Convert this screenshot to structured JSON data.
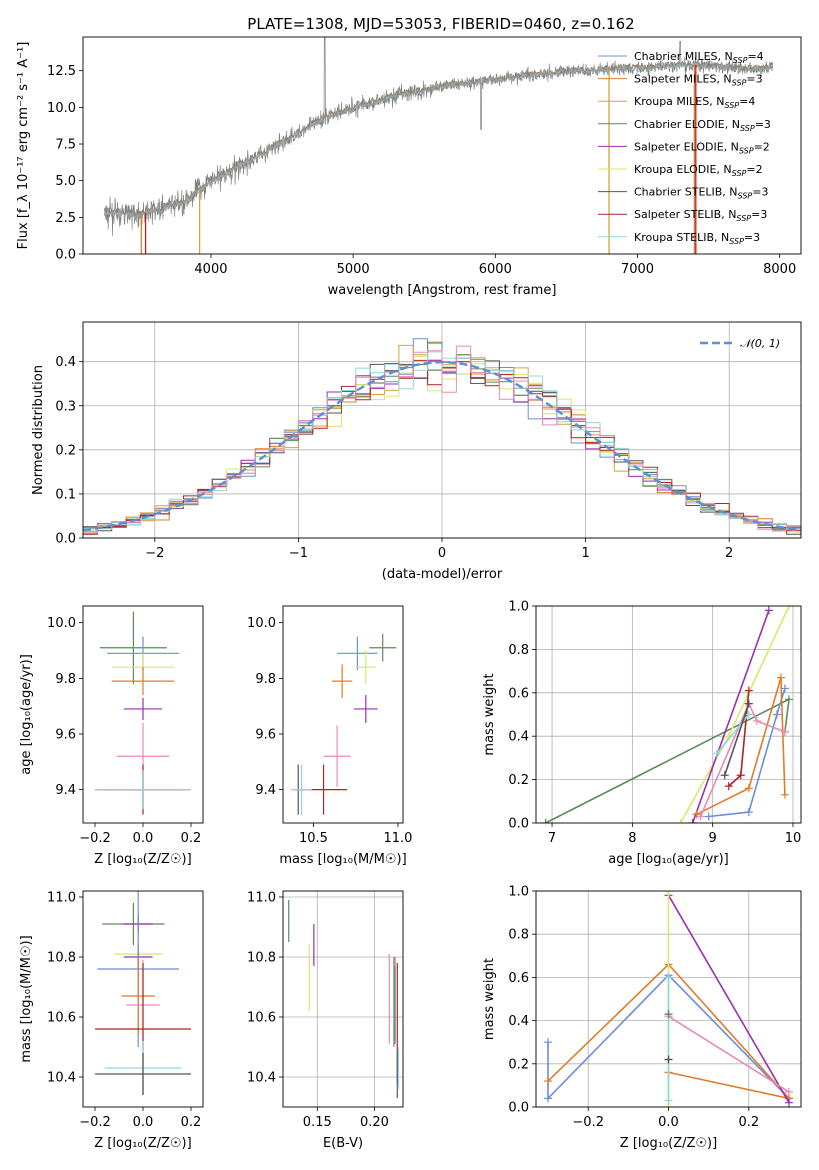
{
  "title": "PLATE=1308, MJD=53053, FIBERID=0460, z=0.162",
  "colors": {
    "spectrum": "#808080",
    "chabrier_miles": "#6a8fd8",
    "salpeter_miles": "#e07b2b",
    "kroupa_miles": "#d4a23a",
    "chabrier_elodie": "#5e8a5e",
    "salpeter_elodie": "#9a2fb0",
    "kroupa_elodie": "#d8e86a",
    "chabrier_stelib": "#555555",
    "salpeter_stelib": "#b22222",
    "kroupa_stelib": "#8fd8d8",
    "pink": "#e88ab8",
    "gauss": "#5b8fd6"
  },
  "chart_data": [
    {
      "id": "spectrum",
      "type": "line",
      "title": "PLATE=1308, MJD=53053, FIBERID=0460, z=0.162",
      "xlabel": "wavelength [Angstrom, rest frame]",
      "ylabel": "Flux [f_λ 10⁻¹⁷ erg cm⁻² s⁻¹ A⁻¹]",
      "xlim": [
        3100,
        8150
      ],
      "ylim": [
        0,
        14.8
      ],
      "xticks": [
        4000,
        5000,
        6000,
        7000,
        8000
      ],
      "yticks": [
        0.0,
        2.5,
        5.0,
        7.5,
        10.0,
        12.5
      ],
      "ytick_labels": [
        "0.0",
        "2.5",
        "5.0",
        "7.5",
        "10.0",
        "12.5"
      ],
      "grid": false,
      "legend_position": "top-right",
      "continuum": {
        "x": [
          3250,
          3500,
          3800,
          4000,
          4200,
          4500,
          4800,
          5000,
          5300,
          5600,
          6000,
          6300,
          6600,
          7000,
          7400,
          7800,
          7950
        ],
        "y": [
          2.8,
          2.7,
          3.5,
          5.0,
          6.0,
          7.6,
          9.3,
          10.0,
          10.8,
          11.4,
          11.9,
          12.3,
          12.5,
          12.7,
          12.9,
          12.6,
          12.8
        ]
      },
      "series": [
        {
          "name": "Chabrier MILES, N_SSP=4",
          "label_main": "Chabrier MILES, N",
          "label_sub": "SSP",
          "label_end": "=4",
          "color": "#6a8fd8"
        },
        {
          "name": "Salpeter MILES, N_SSP=3",
          "label_main": "Salpeter MILES, N",
          "label_sub": "SSP",
          "label_end": "=3",
          "color": "#e07b2b"
        },
        {
          "name": "Kroupa MILES, N_SSP=4",
          "label_main": "Kroupa MILES, N",
          "label_sub": "SSP",
          "label_end": "=4",
          "color": "#d4a23a"
        },
        {
          "name": "Chabrier ELODIE, N_SSP=3",
          "label_main": "Chabrier ELODIE, N",
          "label_sub": "SSP",
          "label_end": "=3",
          "color": "#5e8a5e"
        },
        {
          "name": "Salpeter ELODIE, N_SSP=2",
          "label_main": "Salpeter ELODIE, N",
          "label_sub": "SSP",
          "label_end": "=2",
          "color": "#9a2fb0"
        },
        {
          "name": "Kroupa ELODIE, N_SSP=2",
          "label_main": "Kroupa ELODIE, N",
          "label_sub": "SSP",
          "label_end": "=2",
          "color": "#d8e86a"
        },
        {
          "name": "Chabrier STELIB, N_SSP=3",
          "label_main": "Chabrier STELIB, N",
          "label_sub": "SSP",
          "label_end": "=3",
          "color": "#555555"
        },
        {
          "name": "Salpeter STELIB, N_SSP=3",
          "label_main": "Salpeter STELIB, N",
          "label_sub": "SSP",
          "label_end": "=3",
          "color": "#b22222"
        },
        {
          "name": "Kroupa STELIB, N_SSP=3",
          "label_main": "Kroupa STELIB, N",
          "label_sub": "SSP",
          "label_end": "=3",
          "color": "#8fd8d8"
        }
      ],
      "model_drops": [
        {
          "x": 3510,
          "color": "#e07b2b"
        },
        {
          "x": 3540,
          "color": "#b22222"
        },
        {
          "x": 3920,
          "color": "#d4a23a"
        },
        {
          "x": 6800,
          "color": "#d4a23a"
        },
        {
          "x": 7400,
          "color": "#e07b2b"
        },
        {
          "x": 7410,
          "color": "#b22222"
        }
      ]
    },
    {
      "id": "residuals",
      "type": "histogram",
      "xlabel": "(data-model)/error",
      "ylabel": "Normed distribution",
      "xlim": [
        -2.5,
        2.5
      ],
      "ylim": [
        0,
        0.49
      ],
      "xticks": [
        -2,
        -1,
        0,
        1,
        2
      ],
      "xtick_labels": [
        "−2",
        "−1",
        "0",
        "1",
        "2"
      ],
      "yticks": [
        0.0,
        0.1,
        0.2,
        0.3,
        0.4
      ],
      "ytick_labels": [
        "0.0",
        "0.1",
        "0.2",
        "0.3",
        "0.4"
      ],
      "grid": true,
      "legend_position": "top-right",
      "legend_label": "𝒩(0, 1)",
      "bin_width": 0.1
    },
    {
      "id": "age_vs_Z",
      "type": "errorbar",
      "xlabel": "Z [log₁₀(Z/Z☉)]",
      "ylabel": "age  [log₁₀(age/yr)]",
      "xlim": [
        -0.25,
        0.25
      ],
      "ylim": [
        9.28,
        10.06
      ],
      "xticks": [
        -0.2,
        0.0,
        0.2
      ],
      "xtick_labels": [
        "−0.2",
        "0.0",
        "0.2"
      ],
      "yticks": [
        9.4,
        9.6,
        9.8,
        10.0
      ],
      "ytick_labels": [
        "9.4",
        "9.6",
        "9.8",
        "10.0"
      ],
      "grid": false,
      "points": [
        {
          "x": -0.04,
          "xerr": 0.14,
          "y": 9.91,
          "yerr": 0.13,
          "color": "#5e8a5e"
        },
        {
          "x": 0.0,
          "xerr": 0.15,
          "y": 9.89,
          "yerr": 0.06,
          "color": "#6a8fd8"
        },
        {
          "x": 0.0,
          "xerr": 0.13,
          "y": 9.84,
          "yerr": 0.05,
          "color": "#d8e86a"
        },
        {
          "x": 0.0,
          "xerr": 0.13,
          "y": 9.79,
          "yerr": 0.05,
          "color": "#e07b2b"
        },
        {
          "x": 0.0,
          "xerr": 0.08,
          "y": 9.69,
          "yerr": 0.04,
          "color": "#9a2fb0"
        },
        {
          "x": 0.0,
          "xerr": 0.11,
          "y": 9.52,
          "yerr": 0.12,
          "color": "#e88ab8"
        },
        {
          "x": 0.0,
          "xerr": 0.16,
          "y": 9.4,
          "yerr": 0.09,
          "color": "#b22222"
        },
        {
          "x": 0.0,
          "xerr": 0.2,
          "y": 9.4,
          "yerr": 0.07,
          "color": "#555555"
        },
        {
          "x": 0.0,
          "xerr": 0.2,
          "y": 9.4,
          "yerr": 0.07,
          "color": "#8fd8d8"
        }
      ]
    },
    {
      "id": "age_vs_mass",
      "type": "errorbar",
      "xlabel": "mass [log₁₀(M/M☉)]",
      "ylabel": "",
      "xlim": [
        10.32,
        11.03
      ],
      "ylim": [
        9.28,
        10.06
      ],
      "xticks": [
        10.5,
        11.0
      ],
      "xtick_labels": [
        "10.5",
        "11.0"
      ],
      "yticks": [
        9.4,
        9.6,
        9.8,
        10.0
      ],
      "ytick_labels": [
        "9.4",
        "9.6",
        "9.8",
        "10.0"
      ],
      "grid": false,
      "points": [
        {
          "x": 10.91,
          "xerr": 0.08,
          "y": 9.91,
          "yerr": 0.05,
          "color": "#5e8a5e"
        },
        {
          "x": 10.76,
          "xerr": 0.12,
          "y": 9.89,
          "yerr": 0.06,
          "color": "#6a8fd8"
        },
        {
          "x": 10.81,
          "xerr": 0.06,
          "y": 9.84,
          "yerr": 0.06,
          "color": "#d8e86a"
        },
        {
          "x": 10.67,
          "xerr": 0.06,
          "y": 9.79,
          "yerr": 0.06,
          "color": "#e07b2b"
        },
        {
          "x": 10.81,
          "xerr": 0.07,
          "y": 9.69,
          "yerr": 0.05,
          "color": "#9a2fb0"
        },
        {
          "x": 10.64,
          "xerr": 0.08,
          "y": 9.52,
          "yerr": 0.11,
          "color": "#e88ab8"
        },
        {
          "x": 10.56,
          "xerr": 0.14,
          "y": 9.4,
          "yerr": 0.09,
          "color": "#b22222"
        },
        {
          "x": 10.41,
          "xerr": 0.04,
          "y": 9.4,
          "yerr": 0.09,
          "color": "#555555"
        },
        {
          "x": 10.43,
          "xerr": 0.06,
          "y": 9.4,
          "yerr": 0.09,
          "color": "#8fd8d8"
        }
      ]
    },
    {
      "id": "weight_vs_age",
      "type": "line",
      "xlabel": "age  [log₁₀(age/yr)]",
      "ylabel": "mass weight",
      "xlim": [
        6.8,
        10.1
      ],
      "ylim": [
        0.0,
        1.0
      ],
      "xticks": [
        7,
        8,
        9,
        10
      ],
      "xtick_labels": [
        "7",
        "8",
        "9",
        "10"
      ],
      "yticks": [
        0.0,
        0.2,
        0.4,
        0.6,
        0.8,
        1.0
      ],
      "ytick_labels": [
        "0.0",
        "0.2",
        "0.4",
        "0.6",
        "0.8",
        "1.0"
      ],
      "grid": true,
      "series": [
        {
          "color": "#5e8a5e",
          "x": [
            6.92,
            9.95,
            9.9
          ],
          "y": [
            0.0,
            0.57,
            0.42
          ]
        },
        {
          "color": "#d8e86a",
          "x": [
            8.6,
            9.2,
            9.95
          ],
          "y": [
            0.0,
            0.4,
            1.0
          ]
        },
        {
          "color": "#9a2fb0",
          "x": [
            8.75,
            9.7
          ],
          "y": [
            0.0,
            0.98
          ]
        },
        {
          "color": "#6a8fd8",
          "x": [
            8.95,
            9.45,
            9.8,
            9.9
          ],
          "y": [
            0.03,
            0.05,
            0.5,
            0.62
          ]
        },
        {
          "color": "#e07b2b",
          "x": [
            8.8,
            9.45,
            9.85,
            9.9
          ],
          "y": [
            0.04,
            0.16,
            0.67,
            0.13
          ]
        },
        {
          "color": "#b22222",
          "x": [
            9.2,
            9.35,
            9.45
          ],
          "y": [
            0.17,
            0.22,
            0.61
          ]
        },
        {
          "color": "#e88ab8",
          "x": [
            8.85,
            9.45,
            9.55,
            9.9
          ],
          "y": [
            0.03,
            0.55,
            0.47,
            0.42
          ]
        },
        {
          "color": "#8fd8d8",
          "x": [
            9.05,
            9.45
          ],
          "y": [
            0.32,
            0.5
          ]
        },
        {
          "color": "#555555",
          "x": [
            9.15,
            9.45
          ],
          "y": [
            0.22,
            0.55
          ]
        }
      ]
    },
    {
      "id": "mass_vs_Z",
      "type": "errorbar",
      "xlabel": "Z [log₁₀(Z/Z☉)]",
      "ylabel": "mass [log₁₀(M/M☉)]",
      "xlim": [
        -0.25,
        0.25
      ],
      "ylim": [
        10.3,
        11.02
      ],
      "xticks": [
        -0.2,
        0.0,
        0.2
      ],
      "xtick_labels": [
        "−0.2",
        "0.0",
        "0.2"
      ],
      "yticks": [
        10.4,
        10.6,
        10.8,
        11.0
      ],
      "ytick_labels": [
        "10.4",
        "10.6",
        "10.8",
        "11.0"
      ],
      "grid": false,
      "points": [
        {
          "x": -0.04,
          "xerr": 0.13,
          "y": 10.91,
          "yerr": 0.07,
          "color": "#5e8a5e"
        },
        {
          "x": -0.02,
          "xerr": 0.06,
          "y": 10.91,
          "yerr": 0.03,
          "color": "#9a2fb0"
        },
        {
          "x": -0.02,
          "xerr": 0.1,
          "y": 10.81,
          "yerr": 0.04,
          "color": "#d8e86a"
        },
        {
          "x": -0.02,
          "xerr": 0.06,
          "y": 10.8,
          "yerr": 0.04,
          "color": "#9a2fb0"
        },
        {
          "x": -0.02,
          "xerr": 0.17,
          "y": 10.76,
          "yerr": 0.26,
          "color": "#6a8fd8"
        },
        {
          "x": -0.02,
          "xerr": 0.07,
          "y": 10.67,
          "yerr": 0.13,
          "color": "#e07b2b"
        },
        {
          "x": 0.0,
          "xerr": 0.07,
          "y": 10.64,
          "yerr": 0.15,
          "color": "#e88ab8"
        },
        {
          "x": 0.0,
          "xerr": 0.2,
          "y": 10.56,
          "yerr": 0.22,
          "color": "#b22222"
        },
        {
          "x": 0.0,
          "xerr": 0.16,
          "y": 10.43,
          "yerr": 0.09,
          "color": "#8fd8d8"
        },
        {
          "x": 0.0,
          "xerr": 0.2,
          "y": 10.41,
          "yerr": 0.07,
          "color": "#555555"
        }
      ]
    },
    {
      "id": "mass_vs_ebv",
      "type": "errorbar",
      "xlabel": "E(B-V)",
      "ylabel": "",
      "xlim": [
        0.12,
        0.225
      ],
      "ylim": [
        10.3,
        11.02
      ],
      "xticks": [
        0.15,
        0.2
      ],
      "xtick_labels": [
        "0.15",
        "0.20"
      ],
      "yticks": [
        10.4,
        10.6,
        10.8,
        11.0
      ],
      "ytick_labels": [
        "10.4",
        "10.6",
        "10.8",
        "11.0"
      ],
      "grid": true,
      "points": [
        {
          "x": 0.125,
          "y": 10.92,
          "yerr": 0.07,
          "color": "#5e8a5e"
        },
        {
          "x": 0.147,
          "y": 10.84,
          "yerr": 0.07,
          "color": "#9a2fb0"
        },
        {
          "x": 0.143,
          "y": 10.73,
          "yerr": 0.11,
          "color": "#d8e86a"
        },
        {
          "x": 0.213,
          "y": 10.66,
          "yerr": 0.15,
          "color": "#e88ab8"
        },
        {
          "x": 0.217,
          "y": 10.65,
          "yerr": 0.15,
          "color": "#6a8fd8"
        },
        {
          "x": 0.218,
          "y": 10.66,
          "yerr": 0.14,
          "color": "#e07b2b"
        },
        {
          "x": 0.218,
          "y": 10.64,
          "yerr": 0.13,
          "color": "#5e8a5e"
        },
        {
          "x": 0.22,
          "y": 10.58,
          "yerr": 0.2,
          "color": "#b22222"
        },
        {
          "x": 0.22,
          "y": 10.41,
          "yerr": 0.08,
          "color": "#555555"
        },
        {
          "x": 0.221,
          "y": 10.43,
          "yerr": 0.07,
          "color": "#8fd8d8"
        }
      ]
    },
    {
      "id": "weight_vs_Z",
      "type": "line",
      "xlabel": "Z [log₁₀(Z/Z☉)]",
      "ylabel": "mass weight",
      "xlim": [
        -0.33,
        0.33
      ],
      "ylim": [
        0.0,
        1.0
      ],
      "xticks": [
        -0.2,
        0.0,
        0.2
      ],
      "xtick_labels": [
        "−0.2",
        "0.0",
        "0.2"
      ],
      "yticks": [
        0.0,
        0.2,
        0.4,
        0.6,
        0.8,
        1.0
      ],
      "ytick_labels": [
        "0.0",
        "0.2",
        "0.4",
        "0.6",
        "0.8",
        "1.0"
      ],
      "grid": true,
      "series": [
        {
          "color": "#6a8fd8",
          "x": [
            -0.3,
            -0.3,
            0.0,
            0.3
          ],
          "y": [
            0.3,
            0.04,
            0.61,
            0.04
          ]
        },
        {
          "color": "#e07b2b",
          "x": [
            -0.3,
            0.0,
            0.3,
            0.3,
            0.0,
            0.0
          ],
          "y": [
            0.12,
            0.66,
            0.04,
            0.04,
            0.16,
            0.16
          ]
        },
        {
          "color": "#9a2fb0",
          "x": [
            0.0,
            0.3
          ],
          "y": [
            0.98,
            0.02
          ]
        },
        {
          "color": "#e88ab8",
          "x": [
            0.0,
            0.3
          ],
          "y": [
            0.42,
            0.07
          ]
        },
        {
          "color": "#d8e86a",
          "x": [
            0.0,
            0.0
          ],
          "y": [
            1.0,
            0.0
          ]
        },
        {
          "color": "#8fd8d8",
          "x": [
            0.0,
            0.0
          ],
          "y": [
            0.6,
            0.03
          ]
        },
        {
          "color": "#555555",
          "x": [
            0.0,
            0.0
          ],
          "y": [
            0.22,
            0.22
          ]
        },
        {
          "color": "#5e8a5e",
          "x": [
            0.0,
            0.0
          ],
          "y": [
            0.43,
            0.43
          ]
        }
      ]
    }
  ]
}
